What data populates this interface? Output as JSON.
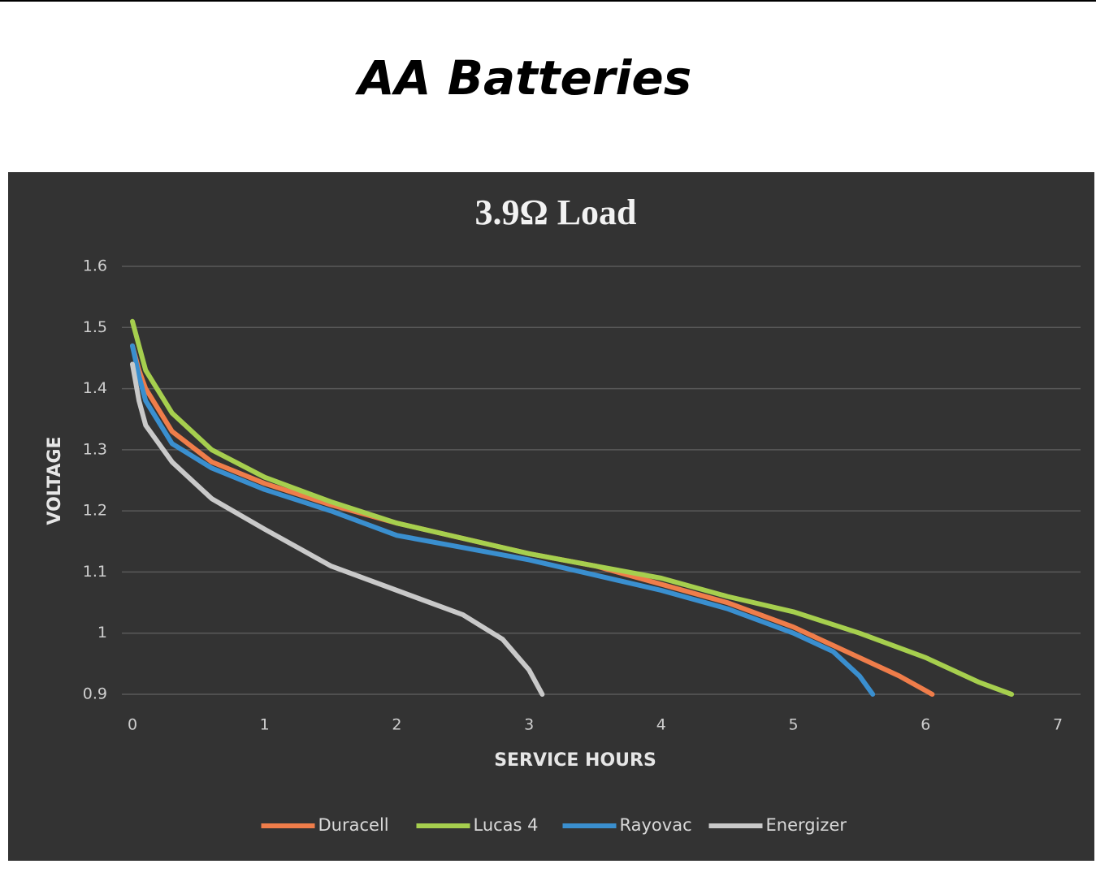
{
  "slide": {
    "title": "AA Batteries"
  },
  "chart_data": {
    "type": "line",
    "title": "3.9Ω Load",
    "x_label": "SERVICE HOURS",
    "y_label": "VOLTAGE",
    "xlim": [
      0,
      7
    ],
    "xticks": [
      0,
      1,
      2,
      3,
      4,
      5,
      6,
      7
    ],
    "ylim": [
      0.9,
      1.6
    ],
    "yticks": [
      0.9,
      1,
      1.1,
      1.2,
      1.3,
      1.4,
      1.5,
      1.6
    ],
    "grid": true,
    "legend": "bottom",
    "series": [
      {
        "name": "Duracell",
        "color": "#ef7d4a",
        "x": [
          0,
          0.05,
          0.1,
          0.3,
          0.6,
          1,
          1.5,
          2,
          2.5,
          3,
          3.5,
          4,
          4.5,
          5,
          5.5,
          5.8,
          6.05
        ],
        "values": [
          1.47,
          1.43,
          1.4,
          1.33,
          1.28,
          1.245,
          1.21,
          1.18,
          1.155,
          1.13,
          1.11,
          1.08,
          1.05,
          1.01,
          0.96,
          0.93,
          0.9
        ]
      },
      {
        "name": "Lucas 4",
        "color": "#a6cf4e",
        "x": [
          0,
          0.05,
          0.1,
          0.3,
          0.6,
          1,
          1.5,
          2,
          2.5,
          3,
          3.5,
          4,
          4.5,
          5,
          5.5,
          6,
          6.4,
          6.65
        ],
        "values": [
          1.51,
          1.47,
          1.43,
          1.36,
          1.3,
          1.255,
          1.215,
          1.18,
          1.155,
          1.13,
          1.11,
          1.09,
          1.06,
          1.035,
          1.0,
          0.96,
          0.92,
          0.9
        ]
      },
      {
        "name": "Rayovac",
        "color": "#3a8fcf",
        "x": [
          0,
          0.05,
          0.1,
          0.3,
          0.6,
          1,
          1.5,
          2,
          2.5,
          3,
          3.5,
          4,
          4.5,
          5,
          5.3,
          5.5,
          5.6
        ],
        "values": [
          1.47,
          1.42,
          1.38,
          1.31,
          1.27,
          1.235,
          1.2,
          1.16,
          1.14,
          1.12,
          1.095,
          1.07,
          1.04,
          1.0,
          0.97,
          0.93,
          0.9
        ]
      },
      {
        "name": "Energizer",
        "color": "#c9c9c9",
        "x": [
          0,
          0.05,
          0.1,
          0.3,
          0.6,
          1,
          1.5,
          2,
          2.5,
          2.8,
          3,
          3.1
        ],
        "values": [
          1.44,
          1.38,
          1.34,
          1.28,
          1.22,
          1.17,
          1.11,
          1.07,
          1.03,
          0.99,
          0.94,
          0.9
        ]
      }
    ]
  }
}
